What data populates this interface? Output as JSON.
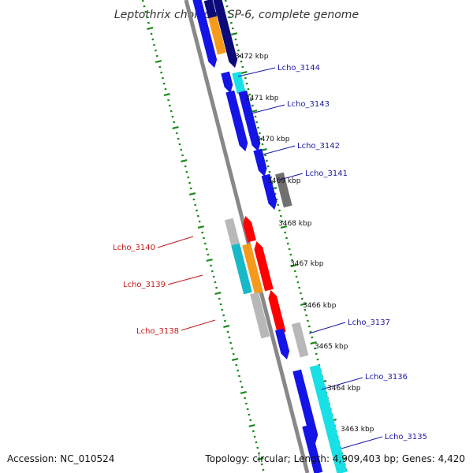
{
  "title": "Leptothrix cholodnii SP-6, complete genome",
  "footer": {
    "accession": "Accession: NC_010524",
    "summary": "Topology: circular; Length: 4,909,403 bp; Genes: 4,420"
  },
  "colors": {
    "backbone": "#888888",
    "ticks": "#1a8a1a",
    "label_plus": "#1a1aa6",
    "label_minus": "#c41a1a",
    "blue": "#1414e6",
    "navy": "#0a0a78",
    "orange": "#f59a1a",
    "cyan": "#17e0e6",
    "teal": "#17b8c8",
    "red": "#ff0000",
    "gray": "#b8b8b8",
    "darkgray": "#707070"
  },
  "ticks": [
    {
      "label": "3472 kbp"
    },
    {
      "label": "3471 kbp"
    },
    {
      "label": "3470 kbp"
    },
    {
      "label": "3469 kbp"
    },
    {
      "label": "3468 kbp"
    },
    {
      "label": "3467 kbp"
    },
    {
      "label": "3466 kbp"
    },
    {
      "label": "3465 kbp"
    },
    {
      "label": "3464 kbp"
    },
    {
      "label": "3463 kbp"
    }
  ],
  "gene_labels": [
    {
      "text": "Lcho_3144",
      "strand": "plus"
    },
    {
      "text": "Lcho_3143",
      "strand": "plus"
    },
    {
      "text": "Lcho_3142",
      "strand": "plus"
    },
    {
      "text": "Lcho_3141",
      "strand": "plus"
    },
    {
      "text": "Lcho_3140",
      "strand": "minus"
    },
    {
      "text": "Lcho_3139",
      "strand": "minus"
    },
    {
      "text": "Lcho_3138",
      "strand": "minus"
    },
    {
      "text": "Lcho_3137",
      "strand": "plus"
    },
    {
      "text": "Lcho_3136",
      "strand": "plus"
    },
    {
      "text": "Lcho_3135",
      "strand": "plus"
    }
  ]
}
